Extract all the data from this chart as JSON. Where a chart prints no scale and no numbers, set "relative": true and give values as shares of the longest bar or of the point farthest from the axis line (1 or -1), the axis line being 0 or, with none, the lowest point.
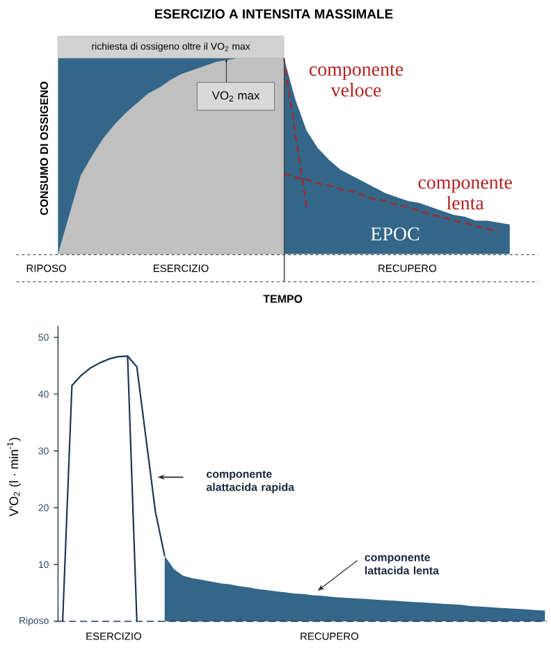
{
  "chart_data": [
    {
      "type": "area",
      "relative": true,
      "title": "ESERCIZIO A INTENSITA MASSIMALE",
      "xlabel": "TEMPO",
      "ylabel": "CONSUMO DI OSSIGENO",
      "categories": [
        null,
        null,
        null,
        null,
        null,
        null,
        null,
        null,
        null,
        null,
        null,
        null,
        null,
        null,
        null,
        null,
        null,
        null,
        null,
        null,
        null,
        null,
        null,
        null,
        null,
        null,
        null,
        null,
        null,
        null,
        null,
        null,
        null,
        null,
        null,
        null,
        null,
        null,
        null,
        null,
        null
      ],
      "series": [
        {
          "color": "#336688",
          "values": [
            1,
            1,
            1,
            1,
            1,
            1,
            1,
            1,
            1,
            1,
            1,
            1,
            1,
            1,
            1,
            1,
            1,
            1,
            1,
            1,
            1,
            0.79,
            0.63,
            0.54,
            0.48,
            0.43,
            0.4,
            0.37,
            0.34,
            0.31,
            0.29,
            0.27,
            0.26,
            0.24,
            0.22,
            0.2,
            0.19,
            0.17,
            0.17,
            0.16,
            0.15
          ]
        },
        {
          "color": "#c0c0c0",
          "values": [
            0,
            0.2,
            0.4,
            0.5,
            0.59,
            0.66,
            0.72,
            0.77,
            0.82,
            0.85,
            0.89,
            0.92,
            0.94,
            0.96,
            0.98,
            0.99,
            1,
            1,
            1,
            1,
            1,
            null,
            null,
            null,
            null,
            null,
            null,
            null,
            null,
            null,
            null,
            null,
            null,
            null,
            null,
            null,
            null,
            null,
            null,
            null,
            null
          ]
        },
        {
          "type": "line",
          "color": "#b22222",
          "line_style": "dashed",
          "values": [
            null,
            null,
            null,
            null,
            null,
            null,
            null,
            null,
            null,
            null,
            null,
            null,
            null,
            null,
            null,
            null,
            null,
            null,
            null,
            null,
            1.0,
            0.62,
            0.24,
            null,
            null,
            null,
            null,
            null,
            null,
            null,
            null,
            null,
            null,
            null,
            null,
            null,
            null,
            null,
            null,
            null,
            null
          ]
        },
        {
          "type": "line",
          "color": "#b22222",
          "line_style": "dashed",
          "values": [
            null,
            null,
            null,
            null,
            null,
            null,
            null,
            null,
            null,
            null,
            null,
            null,
            null,
            null,
            null,
            null,
            null,
            null,
            null,
            null,
            0.41,
            0.39,
            0.38,
            0.36,
            0.35,
            0.33,
            0.32,
            0.3,
            0.28,
            0.27,
            0.25,
            0.24,
            0.22,
            0.2,
            0.19,
            0.17,
            0.16,
            0.14,
            0.13,
            0.11,
            null
          ]
        }
      ],
      "annotations": [
        "richiesta di ossigeno oltre il VO$_{2}$ max",
        "VO$_{2}$ max",
        "componente veloce",
        "componente lenta",
        "EPOC",
        "RIPOSO",
        "ESERCIZIO",
        "RECUPERO"
      ]
    },
    {
      "type": "line",
      "ylabel": "V'O$_{2}$ (l · min$^{-1}$)",
      "tick_labels": "y",
      "categories": [
        null,
        null,
        null,
        null,
        null,
        null,
        null,
        null,
        null,
        null,
        null,
        null,
        null,
        null,
        null,
        null,
        null,
        null,
        null,
        null,
        null,
        null,
        null,
        null,
        null,
        null,
        null,
        null,
        null,
        null,
        null,
        null,
        null,
        null,
        null,
        null,
        null,
        null,
        null,
        null,
        null,
        null,
        null,
        null,
        null,
        null,
        null,
        null,
        null,
        null,
        null,
        null,
        null
      ],
      "ylim": [
        0,
        52
      ],
      "yticks": [
        {
          "value": 0,
          "label": "Riposo"
        },
        10,
        20,
        30,
        40,
        50
      ],
      "ref_lines": [
        {
          "axis": "y",
          "value": 0,
          "line_style": "dashed"
        }
      ],
      "series": [
        {
          "color": "#1e3550",
          "values": [
            0,
            41.5,
            43.3,
            44.6,
            45.5,
            46.2,
            46.6,
            46.7,
            0,
            null,
            null,
            null,
            null,
            null,
            null,
            null,
            null,
            null,
            null,
            null,
            null,
            null,
            null,
            null,
            null,
            null,
            null,
            null,
            null,
            null,
            null,
            null,
            null,
            null,
            null,
            null,
            null,
            null,
            null,
            null,
            null,
            null,
            null,
            null,
            null,
            null,
            null,
            null,
            null,
            null,
            null,
            null,
            null
          ]
        },
        {
          "color": "#1e3550",
          "values": [
            null,
            null,
            null,
            null,
            null,
            null,
            null,
            46.7,
            44.8,
            32.0,
            19.3,
            11.5,
            null,
            null,
            null,
            null,
            null,
            null,
            null,
            null,
            null,
            null,
            null,
            null,
            null,
            null,
            null,
            null,
            null,
            null,
            null,
            null,
            null,
            null,
            null,
            null,
            null,
            null,
            null,
            null,
            null,
            null,
            null,
            null,
            null,
            null,
            null,
            null,
            null,
            null,
            null,
            null,
            null
          ]
        },
        {
          "type": "area",
          "color": "#336688",
          "values": [
            null,
            null,
            null,
            null,
            null,
            null,
            null,
            null,
            null,
            null,
            null,
            11.5,
            9.2,
            8.0,
            7.6,
            7.3,
            7.0,
            6.7,
            6.5,
            6.2,
            6.0,
            5.7,
            5.5,
            5.3,
            5.1,
            4.9,
            4.8,
            4.6,
            4.5,
            4.3,
            4.2,
            4.1,
            4.0,
            3.9,
            3.8,
            3.7,
            3.6,
            3.5,
            3.4,
            3.3,
            3.2,
            3.1,
            3.0,
            2.9,
            2.7,
            2.6,
            2.5,
            2.4,
            2.3,
            2.2,
            2.1,
            2.0,
            1.9
          ]
        }
      ],
      "annotations": [
        "componente alattacida rapida",
        "componente lattacida lenta",
        "ESERCIZIO",
        "RECUPERO"
      ]
    }
  ]
}
